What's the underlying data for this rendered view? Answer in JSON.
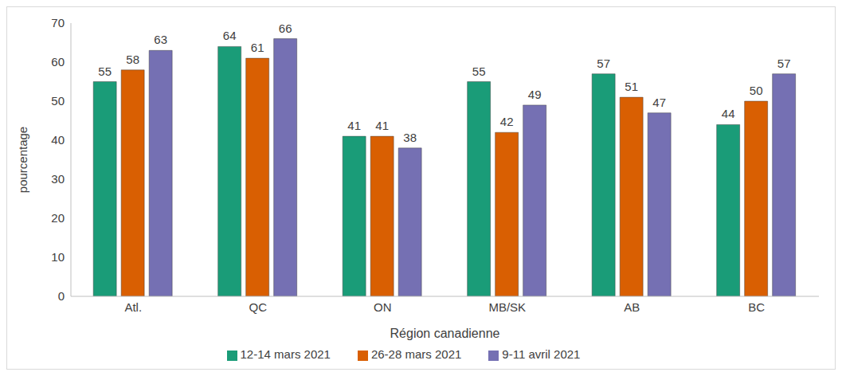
{
  "chart_data": {
    "type": "bar",
    "x_label": "Région canadienne",
    "y_label": "pourcentage",
    "categories": [
      "Atl.",
      "QC",
      "ON",
      "MB/SK",
      "AB",
      "BC"
    ],
    "series": [
      {
        "name": "12-14 mars 2021",
        "color": "#1a9c78",
        "values": [
          55,
          64,
          41,
          55,
          57,
          44
        ]
      },
      {
        "name": "26-28 mars 2021",
        "color": "#d95f02",
        "values": [
          58,
          61,
          41,
          42,
          51,
          50
        ]
      },
      {
        "name": "9-11 avril 2021",
        "color": "#7570b3",
        "values": [
          63,
          66,
          38,
          49,
          47,
          57
        ]
      }
    ],
    "ylim": [
      0,
      70
    ],
    "yticks": [
      0,
      10,
      20,
      30,
      40,
      50,
      60,
      70
    ],
    "grid": false,
    "legend": "bottom",
    "data_labels": true
  }
}
